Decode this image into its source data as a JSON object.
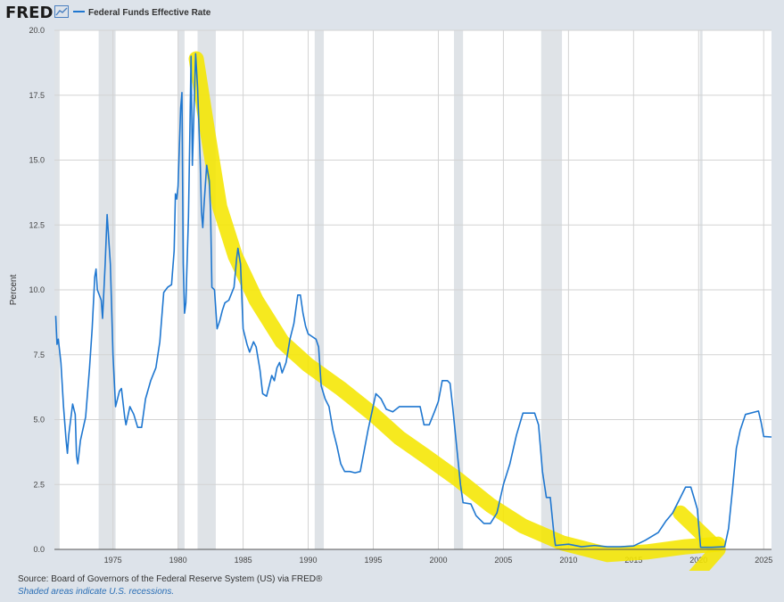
{
  "header": {
    "logo_text": "FRED",
    "logo_icon": "line-graph-icon",
    "legend_label": "Federal Funds Effective Rate"
  },
  "footer": {
    "source": "Source: Board of Governors of the Federal Reserve System (US) via FRED®",
    "note": "Shaded areas indicate U.S. recessions."
  },
  "colors": {
    "series": "#1f77d0",
    "recession": "#dfe3e7",
    "annotation": "#f5e600",
    "grid": "#d3d3d3"
  },
  "chart_data": {
    "type": "line",
    "title": "",
    "xlabel": "",
    "ylabel": "Percent",
    "xlim": [
      1970.5,
      2025.6
    ],
    "ylim": [
      0,
      20
    ],
    "grid": true,
    "legend": "top-left",
    "x_ticks": [
      {
        "v": 1975,
        "label": "1975"
      },
      {
        "v": 1980,
        "label": "1980"
      },
      {
        "v": 1985,
        "label": "1985"
      },
      {
        "v": 1990,
        "label": "1990"
      },
      {
        "v": 1995,
        "label": "1995"
      },
      {
        "v": 2000,
        "label": "2000"
      },
      {
        "v": 2005,
        "label": "2005"
      },
      {
        "v": 2010,
        "label": "2010"
      },
      {
        "v": 2015,
        "label": "2015"
      },
      {
        "v": 2020,
        "label": "2020"
      },
      {
        "v": 2025,
        "label": "2025"
      }
    ],
    "y_ticks": [
      {
        "v": 0,
        "label": "0.0"
      },
      {
        "v": 2.5,
        "label": "2.5"
      },
      {
        "v": 5,
        "label": "5.0"
      },
      {
        "v": 7.5,
        "label": "7.5"
      },
      {
        "v": 10,
        "label": "10.0"
      },
      {
        "v": 12.5,
        "label": "12.5"
      },
      {
        "v": 15,
        "label": "15.0"
      },
      {
        "v": 17.5,
        "label": "17.5"
      },
      {
        "v": 20,
        "label": "20.0"
      }
    ],
    "recessions": [
      [
        1970.5,
        1970.9
      ],
      [
        1973.9,
        1975.2
      ],
      [
        1980.0,
        1980.5
      ],
      [
        1981.5,
        1982.9
      ],
      [
        1990.5,
        1991.2
      ],
      [
        2001.2,
        2001.9
      ],
      [
        2007.9,
        2009.5
      ],
      [
        2020.1,
        2020.3
      ]
    ],
    "series": [
      {
        "name": "Federal Funds Effective Rate",
        "points": [
          [
            1970.6,
            9.0
          ],
          [
            1970.7,
            7.9
          ],
          [
            1970.8,
            8.1
          ],
          [
            1971.0,
            7.2
          ],
          [
            1971.2,
            5.5
          ],
          [
            1971.4,
            4.2
          ],
          [
            1971.5,
            3.7
          ],
          [
            1971.6,
            4.4
          ],
          [
            1971.9,
            5.6
          ],
          [
            1972.1,
            5.2
          ],
          [
            1972.2,
            3.6
          ],
          [
            1972.3,
            3.3
          ],
          [
            1972.5,
            4.2
          ],
          [
            1972.9,
            5.1
          ],
          [
            1973.2,
            7.0
          ],
          [
            1973.4,
            8.5
          ],
          [
            1973.6,
            10.5
          ],
          [
            1973.7,
            10.8
          ],
          [
            1973.8,
            10.0
          ],
          [
            1974.1,
            9.6
          ],
          [
            1974.2,
            8.9
          ],
          [
            1974.4,
            11.0
          ],
          [
            1974.55,
            12.9
          ],
          [
            1974.8,
            11.0
          ],
          [
            1975.0,
            7.5
          ],
          [
            1975.2,
            5.5
          ],
          [
            1975.5,
            6.1
          ],
          [
            1975.65,
            6.2
          ],
          [
            1975.9,
            5.1
          ],
          [
            1976.0,
            4.8
          ],
          [
            1976.3,
            5.5
          ],
          [
            1976.6,
            5.2
          ],
          [
            1976.9,
            4.7
          ],
          [
            1977.2,
            4.7
          ],
          [
            1977.5,
            5.8
          ],
          [
            1977.9,
            6.5
          ],
          [
            1978.3,
            7.0
          ],
          [
            1978.6,
            8.0
          ],
          [
            1978.9,
            9.9
          ],
          [
            1979.2,
            10.1
          ],
          [
            1979.5,
            10.2
          ],
          [
            1979.7,
            11.5
          ],
          [
            1979.8,
            13.7
          ],
          [
            1979.9,
            13.5
          ],
          [
            1980.0,
            14.0
          ],
          [
            1980.2,
            17.0
          ],
          [
            1980.3,
            17.6
          ],
          [
            1980.4,
            11.0
          ],
          [
            1980.5,
            9.1
          ],
          [
            1980.6,
            9.5
          ],
          [
            1980.8,
            12.8
          ],
          [
            1980.9,
            15.8
          ],
          [
            1981.0,
            19.0
          ],
          [
            1981.1,
            14.8
          ],
          [
            1981.2,
            16.5
          ],
          [
            1981.35,
            19.1
          ],
          [
            1981.5,
            17.8
          ],
          [
            1981.7,
            15.0
          ],
          [
            1981.8,
            13.0
          ],
          [
            1981.9,
            12.4
          ],
          [
            1982.0,
            13.3
          ],
          [
            1982.2,
            14.8
          ],
          [
            1982.4,
            14.2
          ],
          [
            1982.5,
            13.0
          ],
          [
            1982.6,
            10.1
          ],
          [
            1982.8,
            10.0
          ],
          [
            1983.0,
            8.5
          ],
          [
            1983.2,
            8.8
          ],
          [
            1983.4,
            9.2
          ],
          [
            1983.6,
            9.5
          ],
          [
            1983.9,
            9.6
          ],
          [
            1984.3,
            10.1
          ],
          [
            1984.5,
            11.2
          ],
          [
            1984.6,
            11.6
          ],
          [
            1984.8,
            11.0
          ],
          [
            1985.0,
            8.5
          ],
          [
            1985.3,
            7.9
          ],
          [
            1985.5,
            7.6
          ],
          [
            1985.8,
            8.0
          ],
          [
            1986.0,
            7.8
          ],
          [
            1986.3,
            6.9
          ],
          [
            1986.5,
            6.0
          ],
          [
            1986.8,
            5.9
          ],
          [
            1987.0,
            6.3
          ],
          [
            1987.2,
            6.7
          ],
          [
            1987.4,
            6.5
          ],
          [
            1987.6,
            7.0
          ],
          [
            1987.8,
            7.2
          ],
          [
            1988.0,
            6.8
          ],
          [
            1988.3,
            7.2
          ],
          [
            1988.6,
            8.1
          ],
          [
            1988.9,
            8.7
          ],
          [
            1989.2,
            9.8
          ],
          [
            1989.4,
            9.8
          ],
          [
            1989.6,
            9.1
          ],
          [
            1989.8,
            8.6
          ],
          [
            1990.0,
            8.3
          ],
          [
            1990.3,
            8.2
          ],
          [
            1990.6,
            8.1
          ],
          [
            1990.8,
            7.8
          ],
          [
            1991.0,
            6.3
          ],
          [
            1991.3,
            5.8
          ],
          [
            1991.6,
            5.5
          ],
          [
            1991.9,
            4.6
          ],
          [
            1992.2,
            4.0
          ],
          [
            1992.5,
            3.3
          ],
          [
            1992.8,
            3.0
          ],
          [
            1993.2,
            3.0
          ],
          [
            1993.6,
            2.95
          ],
          [
            1994.0,
            3.0
          ],
          [
            1994.3,
            3.8
          ],
          [
            1994.6,
            4.6
          ],
          [
            1994.9,
            5.3
          ],
          [
            1995.2,
            6.0
          ],
          [
            1995.6,
            5.8
          ],
          [
            1996.0,
            5.4
          ],
          [
            1996.5,
            5.3
          ],
          [
            1997.0,
            5.5
          ],
          [
            1997.5,
            5.5
          ],
          [
            1998.0,
            5.5
          ],
          [
            1998.6,
            5.5
          ],
          [
            1998.9,
            4.8
          ],
          [
            1999.3,
            4.8
          ],
          [
            1999.7,
            5.3
          ],
          [
            2000.0,
            5.7
          ],
          [
            2000.3,
            6.5
          ],
          [
            2000.7,
            6.5
          ],
          [
            2000.9,
            6.4
          ],
          [
            2001.1,
            5.5
          ],
          [
            2001.4,
            4.0
          ],
          [
            2001.7,
            2.5
          ],
          [
            2001.9,
            1.8
          ],
          [
            2002.5,
            1.75
          ],
          [
            2002.9,
            1.3
          ],
          [
            2003.5,
            1.0
          ],
          [
            2004.0,
            1.0
          ],
          [
            2004.5,
            1.4
          ],
          [
            2005.0,
            2.5
          ],
          [
            2005.5,
            3.3
          ],
          [
            2006.0,
            4.4
          ],
          [
            2006.5,
            5.25
          ],
          [
            2007.4,
            5.25
          ],
          [
            2007.7,
            4.8
          ],
          [
            2008.0,
            3.0
          ],
          [
            2008.3,
            2.0
          ],
          [
            2008.6,
            2.0
          ],
          [
            2008.9,
            0.5
          ],
          [
            2009.0,
            0.15
          ],
          [
            2010.0,
            0.2
          ],
          [
            2011.0,
            0.1
          ],
          [
            2012.0,
            0.15
          ],
          [
            2013.0,
            0.1
          ],
          [
            2014.0,
            0.1
          ],
          [
            2015.0,
            0.13
          ],
          [
            2015.9,
            0.35
          ],
          [
            2016.9,
            0.65
          ],
          [
            2017.5,
            1.1
          ],
          [
            2018.0,
            1.4
          ],
          [
            2018.5,
            1.9
          ],
          [
            2019.0,
            2.4
          ],
          [
            2019.4,
            2.4
          ],
          [
            2019.7,
            1.9
          ],
          [
            2019.9,
            1.55
          ],
          [
            2020.15,
            0.08
          ],
          [
            2021.0,
            0.08
          ],
          [
            2022.0,
            0.1
          ],
          [
            2022.3,
            0.8
          ],
          [
            2022.6,
            2.3
          ],
          [
            2022.9,
            3.9
          ],
          [
            2023.2,
            4.6
          ],
          [
            2023.6,
            5.2
          ],
          [
            2024.6,
            5.33
          ],
          [
            2024.8,
            4.9
          ],
          [
            2025.0,
            4.35
          ],
          [
            2025.6,
            4.33
          ]
        ]
      }
    ],
    "annotations": [
      {
        "type": "highlighter-trend-line",
        "points": [
          [
            1981.4,
            18.9
          ],
          [
            1982.3,
            16.0
          ],
          [
            1983.2,
            13.2
          ],
          [
            1984.4,
            11.3
          ],
          [
            1986.0,
            9.6
          ],
          [
            1988.0,
            8.0
          ],
          [
            1990.0,
            7.1
          ],
          [
            1992.5,
            6.2
          ],
          [
            1995.0,
            5.2
          ],
          [
            1997.0,
            4.3
          ],
          [
            1999.0,
            3.6
          ],
          [
            2001.5,
            2.7
          ],
          [
            2004.0,
            1.7
          ],
          [
            2006.5,
            0.9
          ],
          [
            2009.5,
            0.25
          ],
          [
            2013.0,
            -0.2
          ],
          [
            2016.0,
            -0.1
          ],
          [
            2019.0,
            0.1
          ],
          [
            2021.5,
            0.2
          ]
        ]
      },
      {
        "type": "highlighter-arrowhead",
        "points": [
          [
            2018.6,
            1.4
          ],
          [
            2021.5,
            0.0
          ],
          [
            2019.2,
            -1.3
          ]
        ]
      }
    ]
  }
}
